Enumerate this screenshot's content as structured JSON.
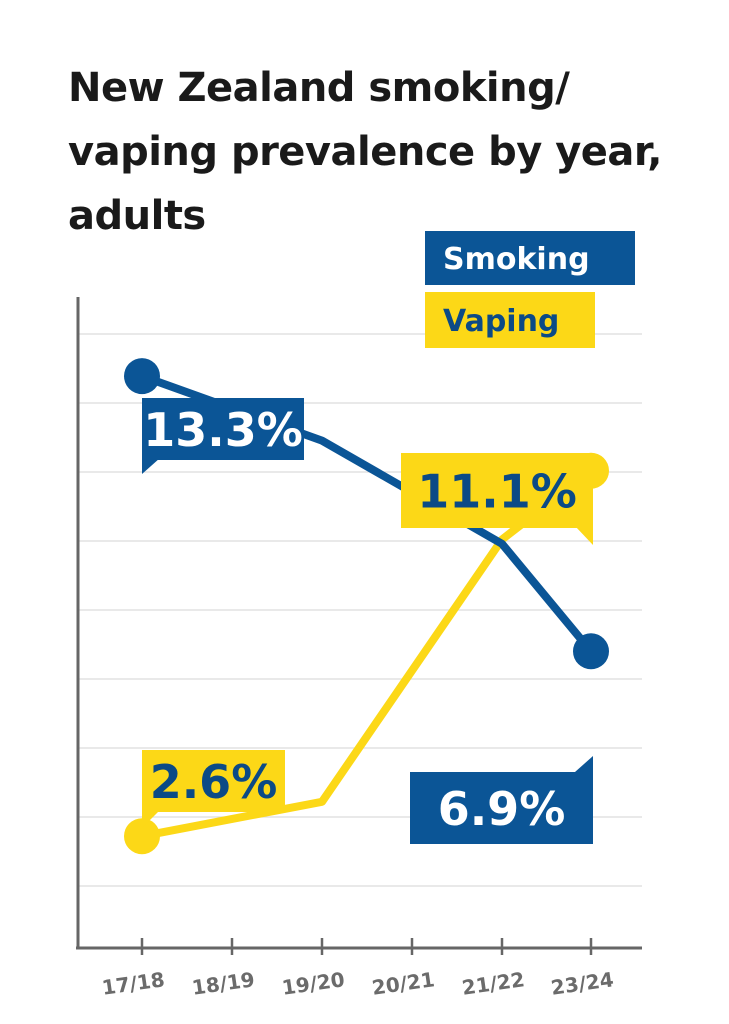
{
  "title": "New Zealand smoking/ vaping prevalence by year, adults",
  "colors": {
    "smoking": "#0b5596",
    "vaping": "#fcd817",
    "grid": "#dcdcdc",
    "axis": "#666666",
    "tick_label": "#6b6b6b"
  },
  "legend": {
    "position": "top-right",
    "items": [
      "Smoking",
      "Vaping"
    ]
  },
  "chart_data": {
    "type": "line",
    "title": "New Zealand smoking/ vaping prevalence by year, adults",
    "xlabel": "",
    "ylabel": "",
    "categories": [
      "17/18",
      "18/19",
      "19/20",
      "20/21",
      "21/22",
      "23/24"
    ],
    "ylim": [
      0,
      16
    ],
    "grid": true,
    "series": [
      {
        "name": "Smoking",
        "color": "#0b5596",
        "points": [
          [
            "17/18",
            13.3
          ],
          [
            "19/20",
            11.8
          ],
          [
            "21/22",
            9.4
          ],
          [
            "23/24",
            6.9
          ]
        ],
        "labels": [
          "13.3%",
          "6.9%"
        ]
      },
      {
        "name": "Vaping",
        "color": "#fcd817",
        "points": [
          [
            "17/18",
            2.6
          ],
          [
            "19/20",
            3.4
          ],
          [
            "21/22",
            9.5
          ],
          [
            "23/24",
            11.1
          ]
        ],
        "labels": [
          "2.6%",
          "11.1%"
        ]
      }
    ]
  }
}
